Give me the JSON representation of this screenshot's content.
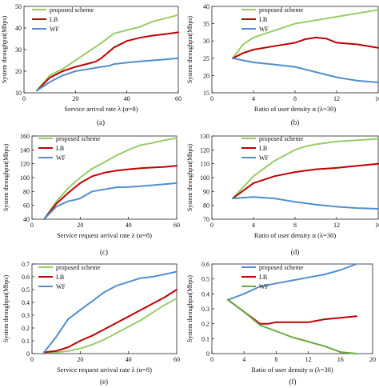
{
  "colors": {
    "proposed": "#99cc66",
    "lb": "#c00000",
    "wf": "#4f8fcf",
    "wf_green": "#6aa83c"
  },
  "chart_data": [
    {
      "type": "line",
      "caption": "(a)",
      "xlabel": "Service  arrival rate λ (α=8)",
      "ylabel": "System throughput(Mbps)",
      "xlim": [
        0,
        60
      ],
      "ylim": [
        10,
        50
      ],
      "xticks": [
        0,
        20,
        40,
        60
      ],
      "yticks": [
        10,
        20,
        30,
        40,
        50
      ],
      "legend": [
        "proposed scheme",
        "LB",
        "WF"
      ],
      "series": [
        {
          "name": "proposed scheme",
          "color": "#99cc66",
          "x": [
            5,
            10,
            15,
            20,
            25,
            30,
            35,
            40,
            45,
            50,
            55,
            60
          ],
          "y": [
            11,
            18,
            21,
            25,
            29,
            33,
            37.5,
            39,
            40.5,
            43,
            44.5,
            46
          ]
        },
        {
          "name": "LB",
          "color": "#c00000",
          "x": [
            5,
            10,
            15,
            20,
            25,
            28,
            30,
            35,
            40,
            45,
            50,
            55,
            60
          ],
          "y": [
            11,
            17,
            20,
            22,
            23.5,
            24.5,
            26,
            31,
            34,
            35.5,
            36.5,
            37.2,
            38
          ]
        },
        {
          "name": "WF",
          "color": "#4f8fcf",
          "x": [
            5,
            10,
            15,
            20,
            25,
            30,
            33,
            35,
            40,
            45,
            50,
            55,
            60
          ],
          "y": [
            11,
            15,
            18,
            20,
            21,
            22,
            22.5,
            23.3,
            24,
            24.5,
            25,
            25.5,
            26
          ]
        }
      ]
    },
    {
      "type": "line",
      "caption": "(b)",
      "xlabel": "Ratio of user density α (λ=30)",
      "ylabel": "System throughput(Mbps)",
      "xlim": [
        0,
        16
      ],
      "ylim": [
        15,
        40
      ],
      "xticks": [
        0,
        4,
        8,
        12,
        16
      ],
      "yticks": [
        15,
        20,
        25,
        30,
        35,
        40
      ],
      "legend": [
        "proposed scheme",
        "LB",
        "WF"
      ],
      "series": [
        {
          "name": "proposed scheme",
          "color": "#99cc66",
          "x": [
            2,
            3,
            4,
            5,
            6,
            8,
            10,
            12,
            14,
            16
          ],
          "y": [
            25,
            29,
            31,
            32,
            33,
            35,
            36,
            37,
            38,
            39
          ]
        },
        {
          "name": "LB",
          "color": "#c00000",
          "x": [
            2,
            3,
            4,
            6,
            8,
            9,
            10,
            11,
            12,
            14,
            16
          ],
          "y": [
            25,
            26.5,
            27.5,
            28.5,
            29.5,
            30.5,
            31,
            30.7,
            29.5,
            29,
            28
          ]
        },
        {
          "name": "WF",
          "color": "#4f8fcf",
          "x": [
            2,
            4,
            6,
            8,
            10,
            12,
            14,
            16
          ],
          "y": [
            25,
            23.8,
            23.2,
            22.5,
            21,
            19.5,
            18.5,
            18
          ]
        }
      ]
    },
    {
      "type": "line",
      "caption": "(c)",
      "xlabel": "Service request arrival rate λ (α=8)",
      "ylabel": "System throughput(Mbps)",
      "xlim": [
        0,
        60
      ],
      "ylim": [
        40,
        160
      ],
      "xticks": [
        0,
        20,
        40,
        60
      ],
      "yticks": [
        40,
        60,
        80,
        100,
        120,
        140,
        160
      ],
      "legend": [
        "proposed scheme",
        "LB",
        "WF"
      ],
      "series": [
        {
          "name": "proposed scheme",
          "color": "#99cc66",
          "x": [
            5,
            10,
            15,
            20,
            25,
            30,
            35,
            40,
            45,
            50,
            55,
            60
          ],
          "y": [
            40,
            65,
            85,
            100,
            113,
            122,
            132,
            140,
            147,
            150,
            154,
            157
          ]
        },
        {
          "name": "LB",
          "color": "#c00000",
          "x": [
            5,
            10,
            15,
            20,
            25,
            30,
            35,
            40,
            45,
            50,
            55,
            60
          ],
          "y": [
            40,
            62,
            78,
            92,
            102,
            107,
            110,
            112,
            113.5,
            114.5,
            115.5,
            117
          ]
        },
        {
          "name": "WF",
          "color": "#4f8fcf",
          "x": [
            5,
            10,
            15,
            18,
            20,
            25,
            30,
            35,
            40,
            45,
            50,
            55,
            60
          ],
          "y": [
            40,
            58,
            66,
            68,
            70,
            80,
            83,
            86,
            86.5,
            87.5,
            89,
            90.5,
            92
          ]
        }
      ]
    },
    {
      "type": "line",
      "caption": "(d)",
      "xlabel": "Ratio of user density α (λ=30)",
      "ylabel": "System throughput(Mbps)",
      "xlim": [
        0,
        16
      ],
      "ylim": [
        70,
        130
      ],
      "xticks": [
        0,
        4,
        8,
        12,
        16
      ],
      "yticks": [
        70,
        80,
        90,
        100,
        110,
        120,
        130
      ],
      "legend": [
        "proposed scheme",
        "LB",
        "WF"
      ],
      "series": [
        {
          "name": "proposed scheme",
          "color": "#99cc66",
          "x": [
            2,
            4,
            6,
            8,
            9,
            10,
            12,
            14,
            16
          ],
          "y": [
            85,
            101,
            112,
            120,
            122.5,
            124,
            126,
            127,
            128
          ]
        },
        {
          "name": "LB",
          "color": "#c00000",
          "x": [
            2,
            4,
            6,
            8,
            10,
            12,
            14,
            16
          ],
          "y": [
            85,
            96,
            101,
            104,
            106,
            107,
            108.5,
            110
          ]
        },
        {
          "name": "WF",
          "color": "#4f8fcf",
          "x": [
            2,
            4,
            6,
            8,
            10,
            12,
            14,
            16
          ],
          "y": [
            85,
            86,
            85,
            82.5,
            80.5,
            79,
            78,
            77.5
          ]
        }
      ]
    },
    {
      "type": "line",
      "caption": "(e)",
      "xlabel": "Service request arrival rate λ (α=8)",
      "ylabel": "System throughput(Mbps)",
      "xlim": [
        0,
        60
      ],
      "ylim": [
        0,
        0.7
      ],
      "xticks": [
        0,
        20,
        40,
        60
      ],
      "yticks": [
        0,
        0.1,
        0.2,
        0.3,
        0.4,
        0.5,
        0.6,
        0.7
      ],
      "legend": [
        "proposed scheme",
        "LB",
        "WF"
      ],
      "series": [
        {
          "name": "proposed scheme",
          "color": "#99cc66",
          "x": [
            5,
            10,
            15,
            20,
            25,
            30,
            35,
            40,
            45,
            50,
            55,
            60
          ],
          "y": [
            0.01,
            0.01,
            0.02,
            0.04,
            0.07,
            0.11,
            0.16,
            0.21,
            0.26,
            0.32,
            0.38,
            0.43
          ]
        },
        {
          "name": "LB",
          "color": "#c00000",
          "x": [
            5,
            10,
            15,
            20,
            25,
            30,
            35,
            40,
            45,
            50,
            55,
            60
          ],
          "y": [
            0.01,
            0.02,
            0.05,
            0.1,
            0.14,
            0.19,
            0.24,
            0.29,
            0.34,
            0.39,
            0.44,
            0.5
          ]
        },
        {
          "name": "WF",
          "color": "#4f8fcf",
          "x": [
            5,
            10,
            15,
            20,
            25,
            30,
            35,
            40,
            45,
            50,
            55,
            60
          ],
          "y": [
            0.01,
            0.13,
            0.27,
            0.34,
            0.41,
            0.48,
            0.53,
            0.56,
            0.59,
            0.6,
            0.62,
            0.64
          ]
        }
      ]
    },
    {
      "type": "line",
      "caption": "(f)",
      "xlabel": "Ratio of user density α (λ=30)",
      "ylabel": "System throughput(Mbps)",
      "xlim": [
        0,
        20
      ],
      "ylim": [
        0,
        0.6
      ],
      "xticks": [
        0,
        4,
        8,
        12,
        16,
        20
      ],
      "yticks": [
        0,
        0.1,
        0.2,
        0.3,
        0.4,
        0.5,
        0.6
      ],
      "legend": [
        "proposed scheme",
        "LB",
        "WF"
      ],
      "series": [
        {
          "name": "proposed scheme",
          "color": "#4f8fcf",
          "x": [
            2,
            4,
            6,
            8,
            10,
            12,
            14,
            16,
            18
          ],
          "y": [
            0.36,
            0.4,
            0.45,
            0.47,
            0.49,
            0.51,
            0.53,
            0.56,
            0.6
          ]
        },
        {
          "name": "LB",
          "color": "#c00000",
          "x": [
            2,
            4,
            6,
            7,
            8,
            10,
            12,
            14,
            16,
            18
          ],
          "y": [
            0.36,
            0.28,
            0.2,
            0.2,
            0.21,
            0.21,
            0.21,
            0.23,
            0.24,
            0.25
          ]
        },
        {
          "name": "WF",
          "color": "#6aa83c",
          "x": [
            2,
            4,
            6,
            8,
            10,
            12,
            14,
            16,
            18
          ],
          "y": [
            0.36,
            0.28,
            0.19,
            0.15,
            0.11,
            0.08,
            0.05,
            0.01,
            0.0
          ]
        }
      ]
    }
  ]
}
